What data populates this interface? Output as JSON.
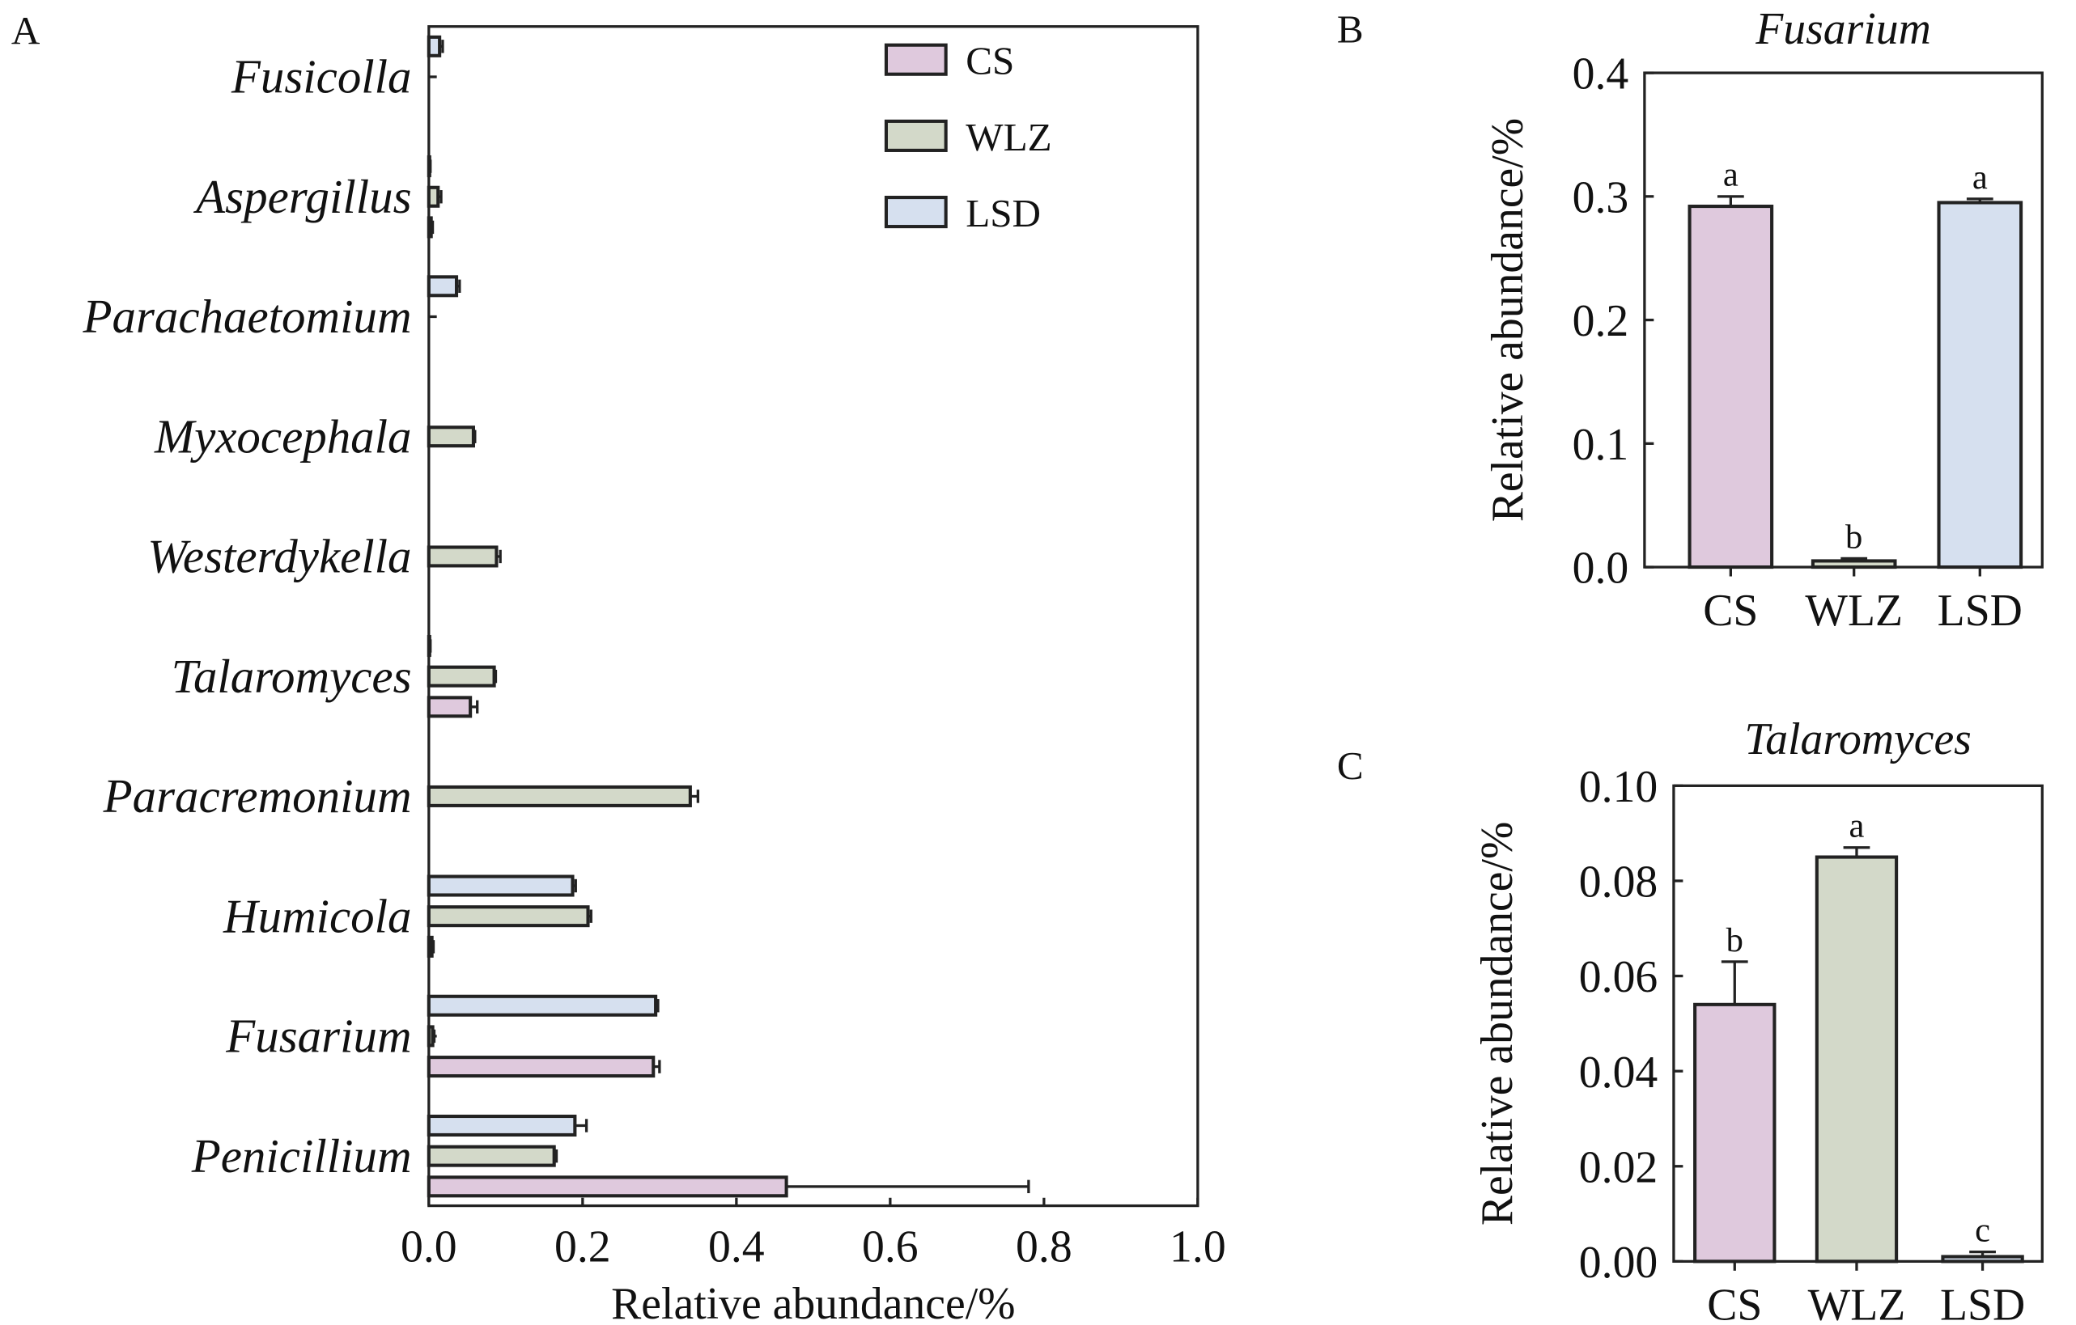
{
  "chart_data": [
    {
      "panel": "A",
      "type": "bar",
      "orientation": "horizontal",
      "title": "",
      "xlabel": "Relative abundance/%",
      "ylabel": "",
      "xlim": [
        0,
        1.0
      ],
      "xticks": [
        "0.0",
        "0.2",
        "0.4",
        "0.6",
        "0.8",
        "1.0"
      ],
      "categories": [
        "Fusicolla",
        "Aspergillus",
        "Parachaetomium",
        "Myxocephala",
        "Westerdykella",
        "Talaromyces",
        "Paracremonium",
        "Humicola",
        "Fusarium",
        "Penicillium"
      ],
      "legend": {
        "position": "top-right",
        "entries": [
          "CS",
          "WLZ",
          "LSD"
        ]
      },
      "series": [
        {
          "name": "LSD",
          "color": "#d6e0ef",
          "values": [
            0.014,
            0.001,
            0.036,
            0,
            0,
            0.001,
            0,
            0.187,
            0.295,
            0.19
          ],
          "errors": [
            0.004,
            0.001,
            0.004,
            0,
            0,
            0.001,
            0,
            0.004,
            0.003,
            0.015
          ]
        },
        {
          "name": "WLZ",
          "color": "#d3d9c9",
          "values": [
            0,
            0.012,
            0,
            0.058,
            0.088,
            0.085,
            0.34,
            0.207,
            0.005,
            0.163
          ],
          "errors": [
            0,
            0.004,
            0,
            0.002,
            0.005,
            0.002,
            0.01,
            0.004,
            0.002,
            0.003
          ]
        },
        {
          "name": "CS",
          "color": "#dfc9dd",
          "values": [
            0,
            0.003,
            0,
            0,
            0,
            0.054,
            0,
            0.004,
            0.292,
            0.465
          ],
          "errors": [
            0,
            0.002,
            0,
            0,
            0,
            0.009,
            0,
            0.002,
            0.008,
            0.315
          ]
        }
      ]
    },
    {
      "panel": "B",
      "type": "bar",
      "title": "Fusarium",
      "xlabel": "",
      "ylabel": "Relative abundance/%",
      "ylim": [
        0,
        0.4
      ],
      "yticks": [
        "0.0",
        "0.1",
        "0.2",
        "0.3",
        "0.4"
      ],
      "categories": [
        "CS",
        "WLZ",
        "LSD"
      ],
      "values": [
        0.292,
        0.005,
        0.295
      ],
      "errors": [
        0.008,
        0.002,
        0.003
      ],
      "letters": [
        "a",
        "b",
        "a"
      ],
      "colors": [
        "#dfc9dd",
        "#d3d9c9",
        "#d6e0ef"
      ]
    },
    {
      "panel": "C",
      "type": "bar",
      "title": "Talaromyces",
      "xlabel": "",
      "ylabel": "Relative abundance/%",
      "ylim": [
        0,
        0.1
      ],
      "yticks": [
        "0.00",
        "0.02",
        "0.04",
        "0.06",
        "0.08",
        "0.10"
      ],
      "categories": [
        "CS",
        "WLZ",
        "LSD"
      ],
      "values": [
        0.054,
        0.085,
        0.001
      ],
      "errors": [
        0.009,
        0.002,
        0.001
      ],
      "letters": [
        "b",
        "a",
        "c"
      ],
      "colors": [
        "#dfc9dd",
        "#d3d9c9",
        "#d6e0ef"
      ]
    }
  ]
}
